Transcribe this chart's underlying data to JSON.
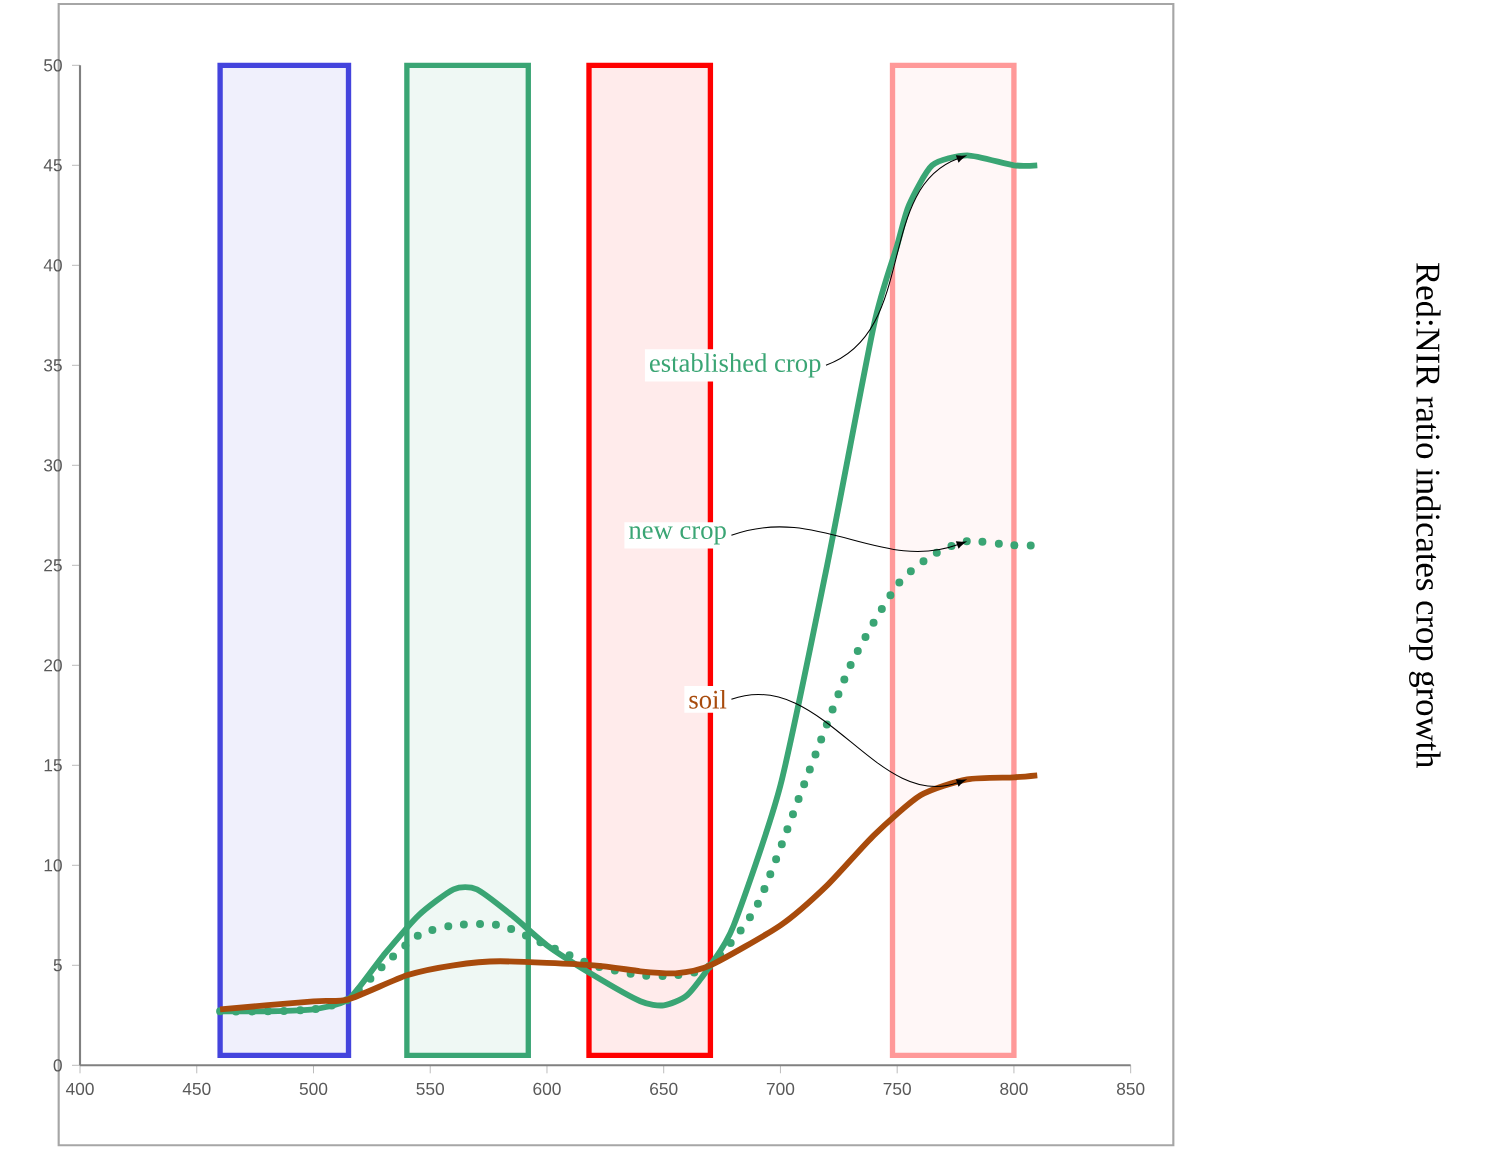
{
  "chart_data": {
    "type": "line",
    "xlim": [
      400,
      850
    ],
    "xticks": [
      400,
      450,
      500,
      550,
      600,
      650,
      700,
      750,
      800,
      850
    ],
    "ylim": [
      0,
      50
    ],
    "yticks": [
      0,
      5,
      10,
      15,
      20,
      25,
      30,
      35,
      40,
      45,
      50
    ],
    "marker": "none",
    "series": [
      {
        "name": "established crop",
        "color": "#3aa574",
        "line_style": "solid",
        "x": [
          460,
          480,
          500,
          515,
          530,
          545,
          560,
          570,
          585,
          600,
          620,
          640,
          650,
          660,
          670,
          680,
          700,
          720,
          740,
          750,
          755,
          765,
          780,
          800,
          810
        ],
        "values": [
          2.7,
          2.7,
          2.8,
          3.3,
          5.5,
          7.5,
          8.8,
          8.8,
          7.5,
          6,
          4.5,
          3.2,
          3.0,
          3.5,
          5,
          7,
          14,
          25,
          37,
          41,
          43,
          45,
          45.5,
          45,
          45
        ]
      },
      {
        "name": "new crop",
        "color": "#3aa574",
        "line_style": "dotted",
        "x": [
          460,
          480,
          500,
          515,
          530,
          545,
          560,
          580,
          600,
          620,
          640,
          655,
          670,
          690,
          710,
          730,
          750,
          765,
          780,
          800,
          810
        ],
        "values": [
          2.7,
          2.7,
          2.8,
          3.3,
          5,
          6.5,
          7,
          7,
          6,
          5,
          4.5,
          4.5,
          5,
          8,
          14,
          20,
          24,
          25.5,
          26.2,
          26,
          26
        ]
      },
      {
        "name": "soil",
        "color": "#a84b0c",
        "line_style": "solid",
        "x": [
          460,
          500,
          515,
          540,
          560,
          580,
          620,
          640,
          655,
          670,
          700,
          720,
          740,
          760,
          780,
          800,
          810
        ],
        "values": [
          2.8,
          3.2,
          3.3,
          4.5,
          5,
          5.2,
          5,
          4.7,
          4.6,
          5,
          7,
          9,
          11.5,
          13.5,
          14.3,
          14.4,
          14.5
        ]
      }
    ],
    "bands": [
      {
        "axis": "x",
        "from": 460,
        "to": 515,
        "color": "#4444dd"
      },
      {
        "axis": "x",
        "from": 540,
        "to": 592,
        "color": "#3aa574"
      },
      {
        "axis": "x",
        "from": 618,
        "to": 670,
        "color": "#ff0000"
      },
      {
        "axis": "x",
        "from": 748,
        "to": 800,
        "color": "#ff9999"
      }
    ],
    "annotations": [
      "Red:NIR ratio indicates crop growth"
    ]
  }
}
